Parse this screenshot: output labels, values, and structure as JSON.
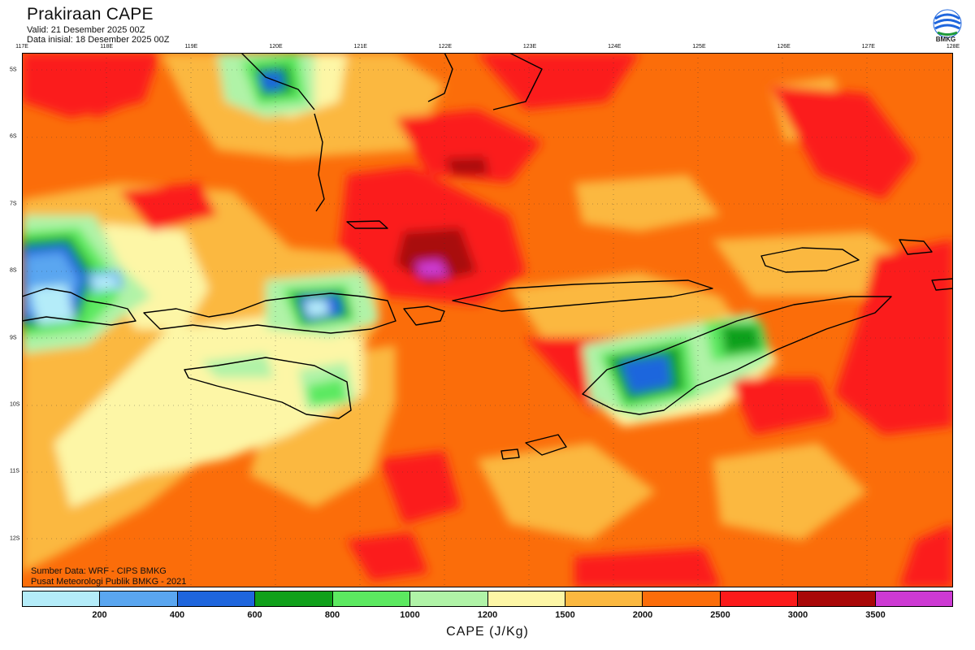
{
  "header": {
    "title": "Prakiraan CAPE",
    "valid": "Valid: 21 Desember 2025 00Z",
    "init": "Data inisial: 18 Desember 2025 00Z"
  },
  "logo": {
    "text": "BMKG"
  },
  "axes": {
    "lon_labels": [
      "117E",
      "118E",
      "119E",
      "120E",
      "121E",
      "122E",
      "123E",
      "124E",
      "125E",
      "126E",
      "127E",
      "128E"
    ],
    "lat_labels": [
      "5S",
      "6S",
      "7S",
      "8S",
      "9S",
      "10S",
      "11S",
      "12S"
    ]
  },
  "credits": {
    "line1": "Sumber Data: WRF - CIPS BMKG",
    "line2": "Pusat Meteorologi Publik BMKG - 2021"
  },
  "colorbar": {
    "colors": [
      "#b4ecf9",
      "#5aa6f0",
      "#1f66dd",
      "#10a01a",
      "#5ce960",
      "#b0f3a7",
      "#fdf6a6",
      "#fbb840",
      "#fb6d0a",
      "#fb1a1a",
      "#a90808",
      "#cd3ad3"
    ],
    "ticks": [
      "200",
      "400",
      "600",
      "800",
      "1000",
      "1200",
      "1500",
      "2000",
      "2500",
      "3000",
      "3500"
    ],
    "label": "CAPE (J/Kg)"
  }
}
